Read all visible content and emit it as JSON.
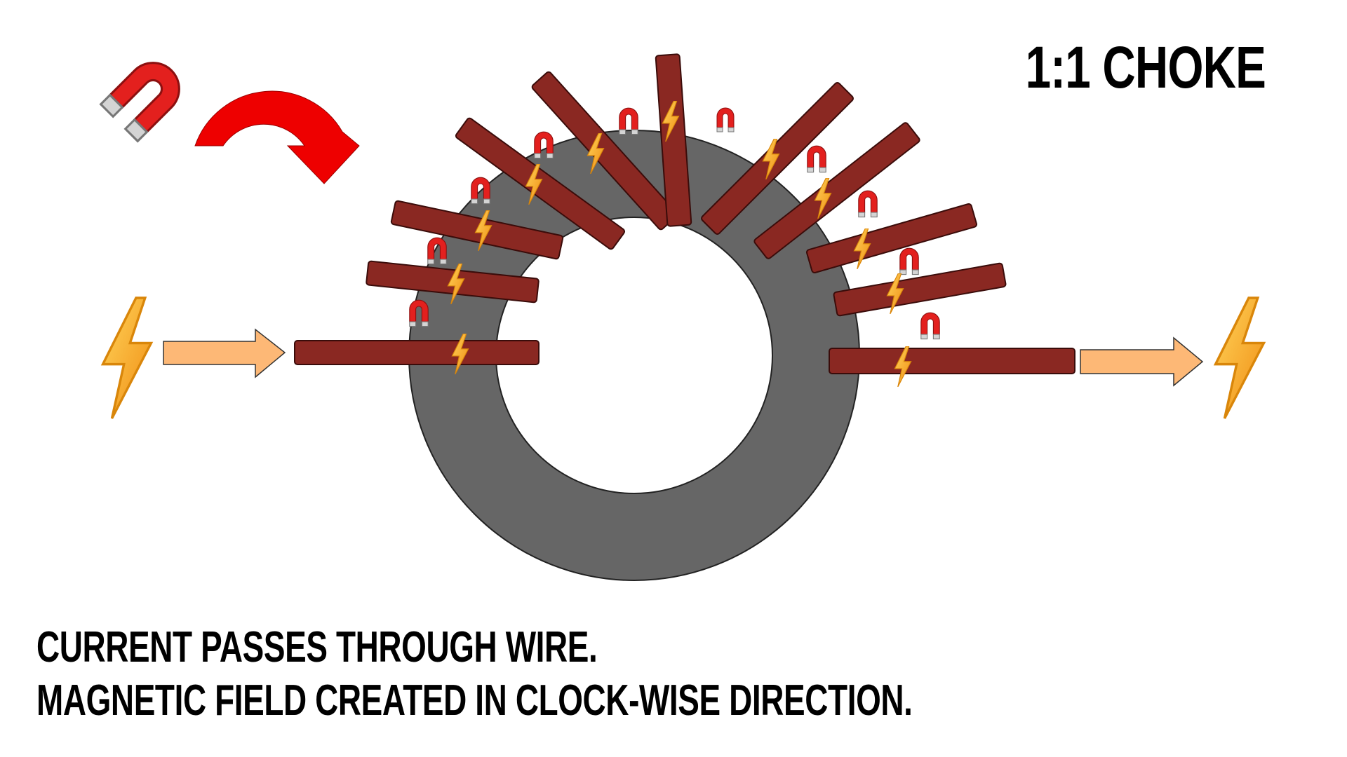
{
  "title": "1:1 CHOKE",
  "caption": {
    "line1": "CURRENT PASSES THROUGH WIRE.",
    "line2": "MAGNETIC FIELD CREATED IN CLOCK-WISE DIRECTION."
  },
  "icons": {
    "current": "lightning-bolt-icon",
    "field": "horseshoe-magnet-icon",
    "flow": "arrow-right-icon",
    "rotation": "clockwise-curved-arrow-icon"
  },
  "colors": {
    "core": "#666666",
    "winding": "#8a2822",
    "flow_arrow": "#fdb876",
    "rotation_arrow": "#ee0000",
    "bolt": "#f6b21a",
    "magnet": "#e3201e"
  }
}
